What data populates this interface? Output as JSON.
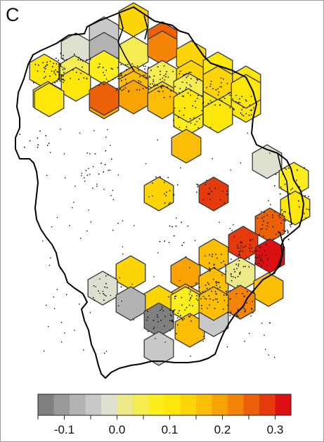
{
  "panel_label": "C",
  "map": {
    "boundary_color": "#000000",
    "record_point_color": "#111111",
    "hex_stroke_color": "#3a3a3a"
  },
  "legend": {
    "colors": [
      "#808080",
      "#999999",
      "#b3b3b3",
      "#c8c8c8",
      "#dfdfcf",
      "#ede88a",
      "#f5ec52",
      "#fbee1c",
      "#fde70a",
      "#fdd506",
      "#fcbd05",
      "#f9a204",
      "#f48405",
      "#ec6107",
      "#e43a0c",
      "#dc1012"
    ],
    "tick_labels": [
      {
        "label": "-0.1",
        "value": -0.1
      },
      {
        "label": "0.0",
        "value": 0.0
      },
      {
        "label": "0.1",
        "value": 0.1
      },
      {
        "label": "0.2",
        "value": 0.2
      },
      {
        "label": "0.3",
        "value": 0.3
      }
    ],
    "min": -0.15,
    "max": 0.33
  },
  "hexagons": [
    {
      "cell": "n1",
      "value": 0.14
    },
    {
      "cell": "n2",
      "value": -0.05
    },
    {
      "cell": "n3",
      "value": 0.26
    },
    {
      "cell": "n4",
      "value": -0.02
    },
    {
      "cell": "n5",
      "value": -0.09
    },
    {
      "cell": "n6",
      "value": 0.03
    },
    {
      "cell": "n7",
      "value": 0.22
    },
    {
      "cell": "n8",
      "value": 0.12
    },
    {
      "cell": "n9",
      "value": 0.09
    },
    {
      "cell": "n10",
      "value": 0.05
    },
    {
      "cell": "n11",
      "value": 0.07
    },
    {
      "cell": "n12",
      "value": 0.17
    },
    {
      "cell": "n13",
      "value": 0.03
    },
    {
      "cell": "n14",
      "value": 0.12
    },
    {
      "cell": "n15",
      "value": 0.11
    },
    {
      "cell": "n16",
      "value": 0.1
    },
    {
      "cell": "n17",
      "value": 0.08
    },
    {
      "cell": "n18",
      "value": 0.1
    },
    {
      "cell": "n19",
      "value": 0.19
    },
    {
      "cell": "n20",
      "value": 0.17
    },
    {
      "cell": "n21",
      "value": 0.14
    },
    {
      "cell": "n22",
      "value": 0.04
    },
    {
      "cell": "n23",
      "value": 0.1
    },
    {
      "cell": "n24",
      "value": 0.09
    },
    {
      "cell": "n25",
      "value": 0.08
    },
    {
      "cell": "n26",
      "value": 0.1
    },
    {
      "cell": "n27",
      "value": 0.25
    },
    {
      "cell": "n28",
      "value": 0.2
    },
    {
      "cell": "n29",
      "value": 0.15
    },
    {
      "cell": "n30",
      "value": 0.1
    },
    {
      "cell": "n31",
      "value": 0.12
    },
    {
      "cell": "n32",
      "value": 0.11
    },
    {
      "cell": "n33",
      "value": 0.1
    },
    {
      "cell": "n34",
      "value": 0.17
    },
    {
      "cell": "e1",
      "value": -0.03
    },
    {
      "cell": "e2",
      "value": 0.07
    },
    {
      "cell": "e3",
      "value": 0.09
    },
    {
      "cell": "c1",
      "value": 0.13
    },
    {
      "cell": "c2",
      "value": 0.28
    },
    {
      "cell": "s1",
      "value": 0.26
    },
    {
      "cell": "s2",
      "value": 0.3
    },
    {
      "cell": "s3",
      "value": 0.18
    },
    {
      "cell": "s4",
      "value": 0.19
    },
    {
      "cell": "s5",
      "value": 0.31
    },
    {
      "cell": "s6",
      "value": 0.16
    },
    {
      "cell": "s7",
      "value": 0.17
    },
    {
      "cell": "s8",
      "value": 0.02
    },
    {
      "cell": "s9",
      "value": 0.18
    },
    {
      "cell": "s10",
      "value": 0.2
    },
    {
      "cell": "s11",
      "value": 0.14
    },
    {
      "cell": "s12",
      "value": 0.08
    },
    {
      "cell": "s13",
      "value": 0.21
    },
    {
      "cell": "s14",
      "value": 0.17
    },
    {
      "cell": "s15",
      "value": -0.06
    },
    {
      "cell": "s16",
      "value": 0.16
    },
    {
      "cell": "w1",
      "value": 0.13
    },
    {
      "cell": "w2",
      "value": -0.03
    },
    {
      "cell": "w3",
      "value": -0.07
    },
    {
      "cell": "w4",
      "value": -0.13
    },
    {
      "cell": "w5",
      "value": -0.04
    }
  ]
}
